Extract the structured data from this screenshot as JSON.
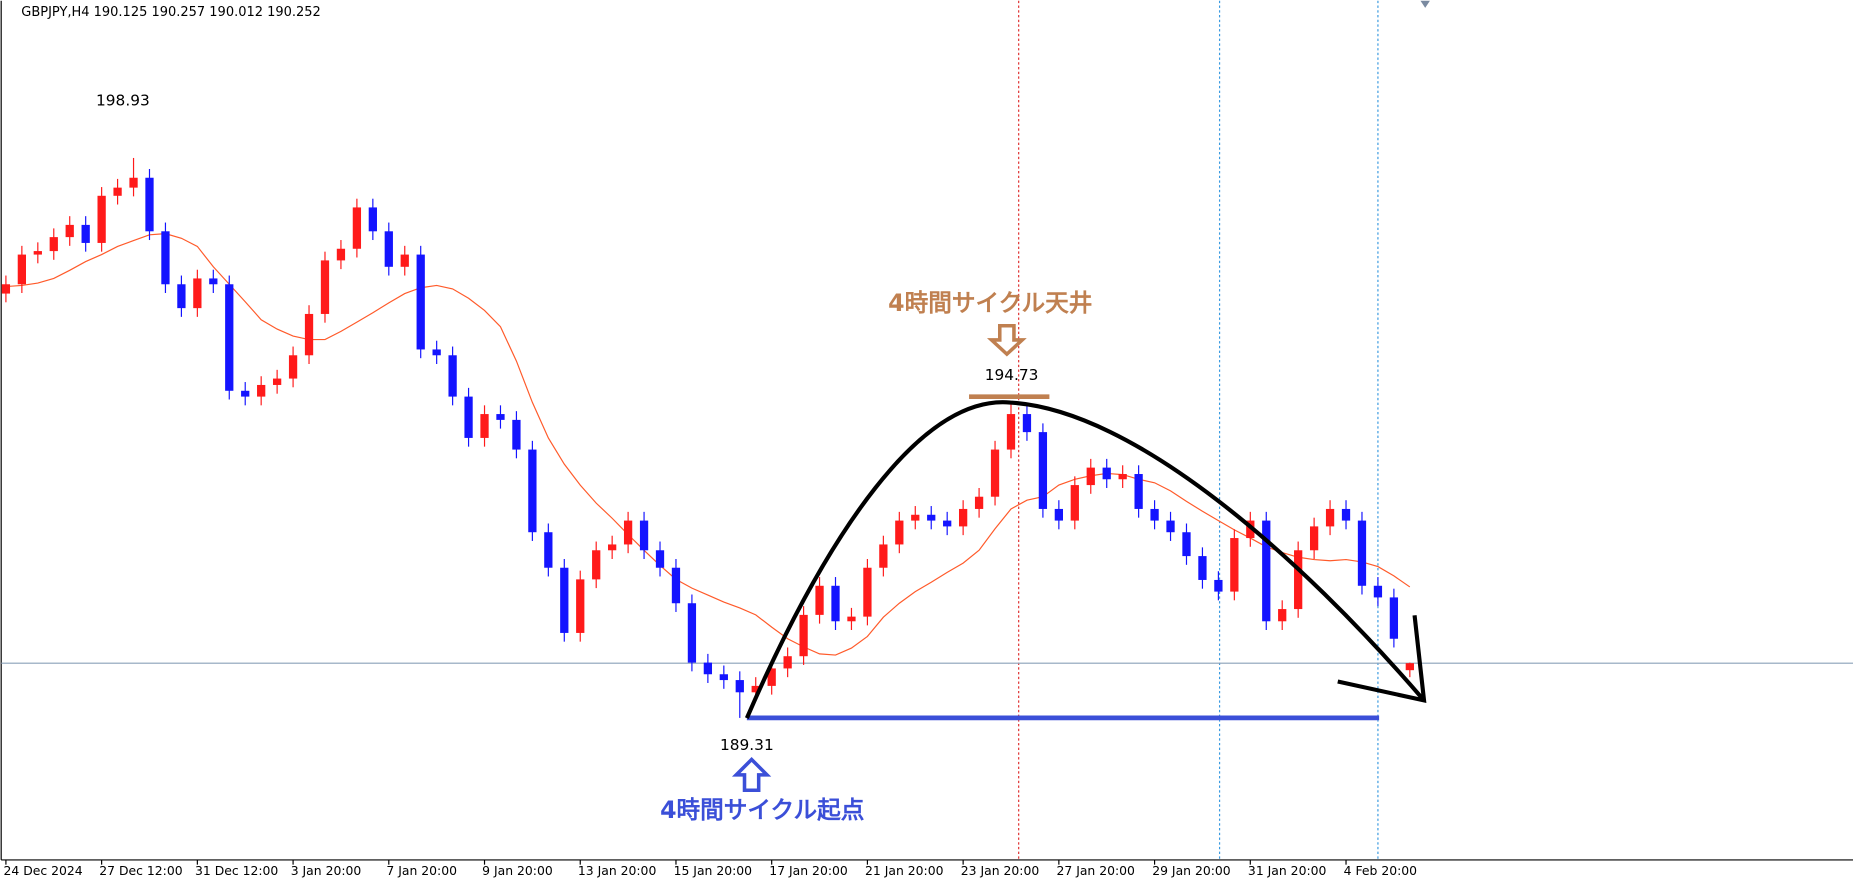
{
  "chart_data": {
    "type": "candlestick",
    "header": "GBPJPY,H4  190.125 190.257 190.012 190.252",
    "categories": [
      "24 Dec 2024",
      null,
      null,
      null,
      null,
      null,
      "27 Dec 12:00",
      null,
      null,
      null,
      null,
      null,
      "31 Dec 12:00",
      null,
      null,
      null,
      null,
      null,
      "3 Jan 20:00",
      null,
      null,
      null,
      null,
      null,
      "7 Jan 20:00",
      null,
      null,
      null,
      null,
      null,
      "9 Jan 20:00",
      null,
      null,
      null,
      null,
      null,
      "13 Jan 20:00",
      null,
      null,
      null,
      null,
      null,
      "15 Jan 20:00",
      null,
      null,
      null,
      null,
      null,
      "17 Jan 20:00",
      null,
      null,
      null,
      null,
      null,
      "21 Jan 20:00",
      null,
      null,
      null,
      null,
      null,
      "23 Jan 20:00",
      null,
      null,
      null,
      null,
      null,
      "27 Jan 20:00",
      null,
      null,
      null,
      null,
      null,
      "29 Jan 20:00",
      null,
      null,
      null,
      null,
      null,
      "31 Jan 20:00",
      null,
      null,
      null,
      null,
      null,
      "4 Feb 20:00",
      null,
      null,
      null,
      null
    ],
    "open": [
      196.6,
      196.76,
      197.27,
      197.33,
      197.57,
      197.78,
      197.47,
      198.28,
      198.42,
      198.59,
      197.67,
      196.76,
      196.35,
      196.86,
      196.76,
      194.93,
      194.83,
      195.03,
      195.14,
      195.54,
      196.25,
      197.17,
      197.37,
      198.08,
      197.67,
      197.06,
      197.27,
      195.64,
      195.54,
      194.83,
      194.12,
      194.53,
      194.43,
      193.92,
      192.5,
      191.89,
      190.77,
      191.69,
      192.19,
      192.29,
      192.7,
      192.19,
      191.89,
      191.28,
      190.26,
      190.06,
      189.96,
      189.75,
      189.86,
      190.16,
      190.37,
      191.08,
      191.58,
      190.97,
      191.05,
      191.89,
      192.29,
      192.7,
      192.8,
      192.7,
      192.6,
      192.9,
      193.11,
      193.92,
      194.53,
      194.22,
      192.9,
      192.7,
      193.31,
      193.61,
      193.41,
      193.5,
      192.9,
      192.7,
      192.5,
      192.09,
      191.68,
      191.48,
      192.4,
      192.7,
      190.97,
      191.18,
      192.19,
      192.6,
      192.9,
      192.7,
      191.58,
      191.38,
      190.13
    ],
    "high": [
      196.91,
      197.42,
      197.48,
      197.72,
      197.93,
      197.93,
      198.43,
      198.57,
      198.93,
      198.74,
      197.82,
      196.91,
      197.01,
      197.01,
      196.91,
      195.08,
      195.18,
      195.29,
      195.69,
      196.4,
      197.32,
      197.52,
      198.23,
      198.23,
      197.82,
      197.42,
      197.42,
      195.79,
      195.69,
      194.98,
      194.68,
      194.68,
      194.58,
      194.07,
      192.65,
      192.04,
      191.84,
      192.34,
      192.44,
      192.85,
      192.85,
      192.34,
      192.04,
      191.43,
      190.41,
      190.21,
      190.11,
      190.01,
      190.31,
      190.52,
      191.23,
      191.73,
      191.73,
      191.2,
      192.04,
      192.44,
      192.85,
      192.95,
      192.95,
      192.85,
      193.05,
      193.26,
      194.07,
      194.73,
      194.68,
      194.37,
      193.05,
      193.46,
      193.76,
      193.76,
      193.65,
      193.65,
      193.05,
      192.85,
      192.65,
      192.24,
      191.83,
      192.55,
      192.85,
      192.85,
      191.33,
      192.34,
      192.75,
      193.05,
      193.05,
      192.85,
      191.73,
      191.53,
      190.26
    ],
    "low": [
      196.45,
      196.61,
      197.12,
      197.18,
      197.42,
      197.32,
      197.32,
      198.13,
      198.27,
      197.52,
      196.61,
      196.2,
      196.2,
      196.61,
      194.78,
      194.68,
      194.68,
      194.88,
      194.99,
      195.39,
      196.1,
      197.02,
      197.22,
      197.52,
      196.91,
      196.91,
      195.49,
      195.39,
      194.68,
      193.97,
      193.97,
      194.28,
      193.77,
      192.35,
      191.74,
      190.62,
      190.62,
      191.54,
      192.04,
      192.14,
      192.04,
      191.74,
      191.13,
      190.11,
      189.91,
      189.81,
      189.31,
      189.6,
      189.71,
      190.01,
      190.22,
      190.93,
      190.82,
      190.82,
      190.9,
      191.74,
      192.14,
      192.55,
      192.55,
      192.45,
      192.45,
      192.75,
      192.96,
      193.77,
      194.07,
      192.75,
      192.55,
      192.55,
      193.16,
      193.26,
      193.26,
      192.75,
      192.55,
      192.35,
      191.94,
      191.53,
      191.33,
      191.33,
      192.25,
      190.82,
      190.82,
      191.03,
      192.04,
      192.45,
      192.55,
      191.43,
      191.23,
      190.52,
      190.01
    ],
    "close": [
      196.76,
      197.27,
      197.33,
      197.57,
      197.78,
      197.47,
      198.28,
      198.42,
      198.59,
      197.67,
      196.76,
      196.35,
      196.86,
      196.76,
      194.93,
      194.83,
      195.03,
      195.14,
      195.54,
      196.25,
      197.17,
      197.37,
      198.08,
      197.67,
      197.06,
      197.27,
      195.64,
      195.54,
      194.83,
      194.12,
      194.53,
      194.43,
      193.92,
      192.5,
      191.89,
      190.77,
      191.69,
      192.19,
      192.29,
      192.7,
      192.19,
      191.89,
      191.28,
      190.26,
      190.06,
      189.96,
      189.75,
      189.86,
      190.16,
      190.37,
      191.08,
      191.58,
      190.97,
      191.05,
      191.89,
      192.29,
      192.7,
      192.8,
      192.7,
      192.6,
      192.9,
      193.11,
      193.92,
      194.53,
      194.22,
      192.9,
      192.7,
      193.31,
      193.61,
      193.41,
      193.5,
      192.9,
      192.7,
      192.5,
      192.09,
      191.68,
      191.48,
      192.4,
      192.7,
      190.97,
      191.18,
      192.19,
      192.6,
      192.9,
      192.7,
      191.58,
      191.38,
      190.67,
      190.25
    ],
    "up_color": "#ff1a1a",
    "down_color": "#1414ff",
    "moving_average": {
      "color": "#ff5a2a",
      "values": [
        196.72,
        196.74,
        196.78,
        196.86,
        197.0,
        197.15,
        197.27,
        197.41,
        197.51,
        197.61,
        197.63,
        197.55,
        197.41,
        197.06,
        196.76,
        196.46,
        196.15,
        195.99,
        195.87,
        195.81,
        195.81,
        195.95,
        196.11,
        196.27,
        196.44,
        196.6,
        196.7,
        196.74,
        196.68,
        196.52,
        196.31,
        196.03,
        195.44,
        194.73,
        194.12,
        193.67,
        193.31,
        193.0,
        192.74,
        192.46,
        192.19,
        191.93,
        191.69,
        191.54,
        191.42,
        191.3,
        191.2,
        191.08,
        190.87,
        190.67,
        190.53,
        190.41,
        190.39,
        190.51,
        190.71,
        191.04,
        191.28,
        191.48,
        191.64,
        191.81,
        191.97,
        192.19,
        192.56,
        192.9,
        193.05,
        193.11,
        193.31,
        193.41,
        193.47,
        193.51,
        193.49,
        193.41,
        193.35,
        193.21,
        193.03,
        192.86,
        192.7,
        192.54,
        192.4,
        192.25,
        192.15,
        192.07,
        192.03,
        192.01,
        192.03,
        191.99,
        191.91,
        191.75,
        191.56
      ]
    },
    "ylim": [
      186.87,
      201.63
    ],
    "price_labels": [
      "198.93",
      "194.73",
      "189.31"
    ],
    "top_label": "4時間サイクル天井",
    "start_label": "4時間サイクル起点"
  }
}
